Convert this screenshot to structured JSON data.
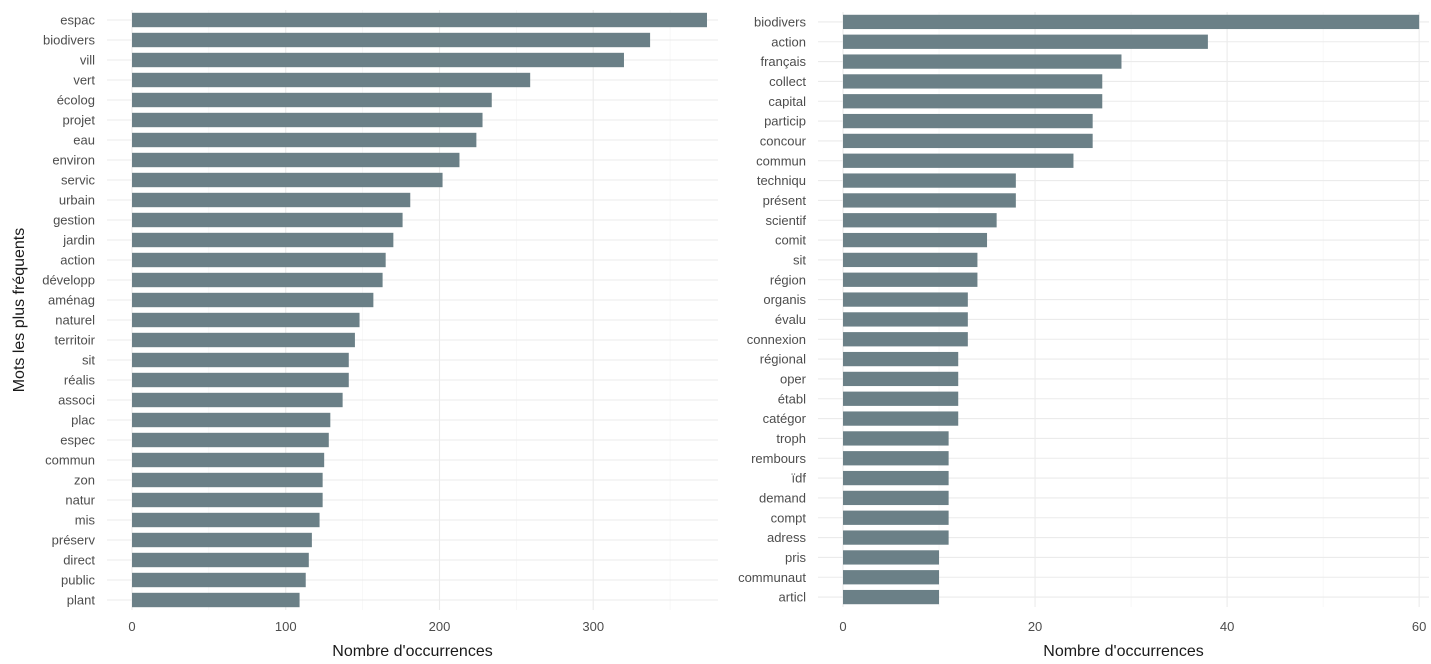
{
  "chart_data": [
    {
      "type": "bar",
      "orientation": "horizontal",
      "xlabel": "Nombre d'occurrences",
      "ylabel": "Mots les plus fréquents",
      "xlim": [
        0,
        380
      ],
      "xticks": [
        0,
        100,
        200,
        300
      ],
      "grid": true,
      "bar_color": "#6b8087",
      "categories": [
        "espac",
        "biodivers",
        "vill",
        "vert",
        "écolog",
        "projet",
        "eau",
        "environ",
        "servic",
        "urbain",
        "gestion",
        "jardin",
        "action",
        "développ",
        "aménag",
        "naturel",
        "territoir",
        "sit",
        "réalis",
        "associ",
        "plac",
        "espec",
        "commun",
        "zon",
        "natur",
        "mis",
        "préserv",
        "direct",
        "public",
        "plant"
      ],
      "values": [
        374,
        337,
        320,
        259,
        234,
        228,
        224,
        213,
        202,
        181,
        176,
        170,
        165,
        163,
        157,
        148,
        145,
        141,
        141,
        137,
        129,
        128,
        125,
        124,
        124,
        122,
        117,
        115,
        113,
        109
      ]
    },
    {
      "type": "bar",
      "orientation": "horizontal",
      "xlabel": "Nombre d'occurrences",
      "ylabel": "",
      "xlim": [
        0,
        61
      ],
      "xticks": [
        0,
        20,
        40,
        60
      ],
      "grid": true,
      "bar_color": "#6b8087",
      "categories": [
        "biodivers",
        "action",
        "français",
        "collect",
        "capital",
        "particip",
        "concour",
        "commun",
        "techniqu",
        "présent",
        "scientif",
        "comit",
        "sit",
        "région",
        "organis",
        "évalu",
        "connexion",
        "régional",
        "oper",
        "établ",
        "catégor",
        "troph",
        "rembours",
        "ïdf",
        "demand",
        "compt",
        "adress",
        "pris",
        "communaut",
        "articl"
      ],
      "values": [
        60,
        38,
        29,
        27,
        27,
        26,
        26,
        24,
        18,
        18,
        16,
        15,
        14,
        14,
        13,
        13,
        13,
        12,
        12,
        12,
        12,
        11,
        11,
        11,
        11,
        11,
        11,
        10,
        10,
        10
      ]
    }
  ]
}
